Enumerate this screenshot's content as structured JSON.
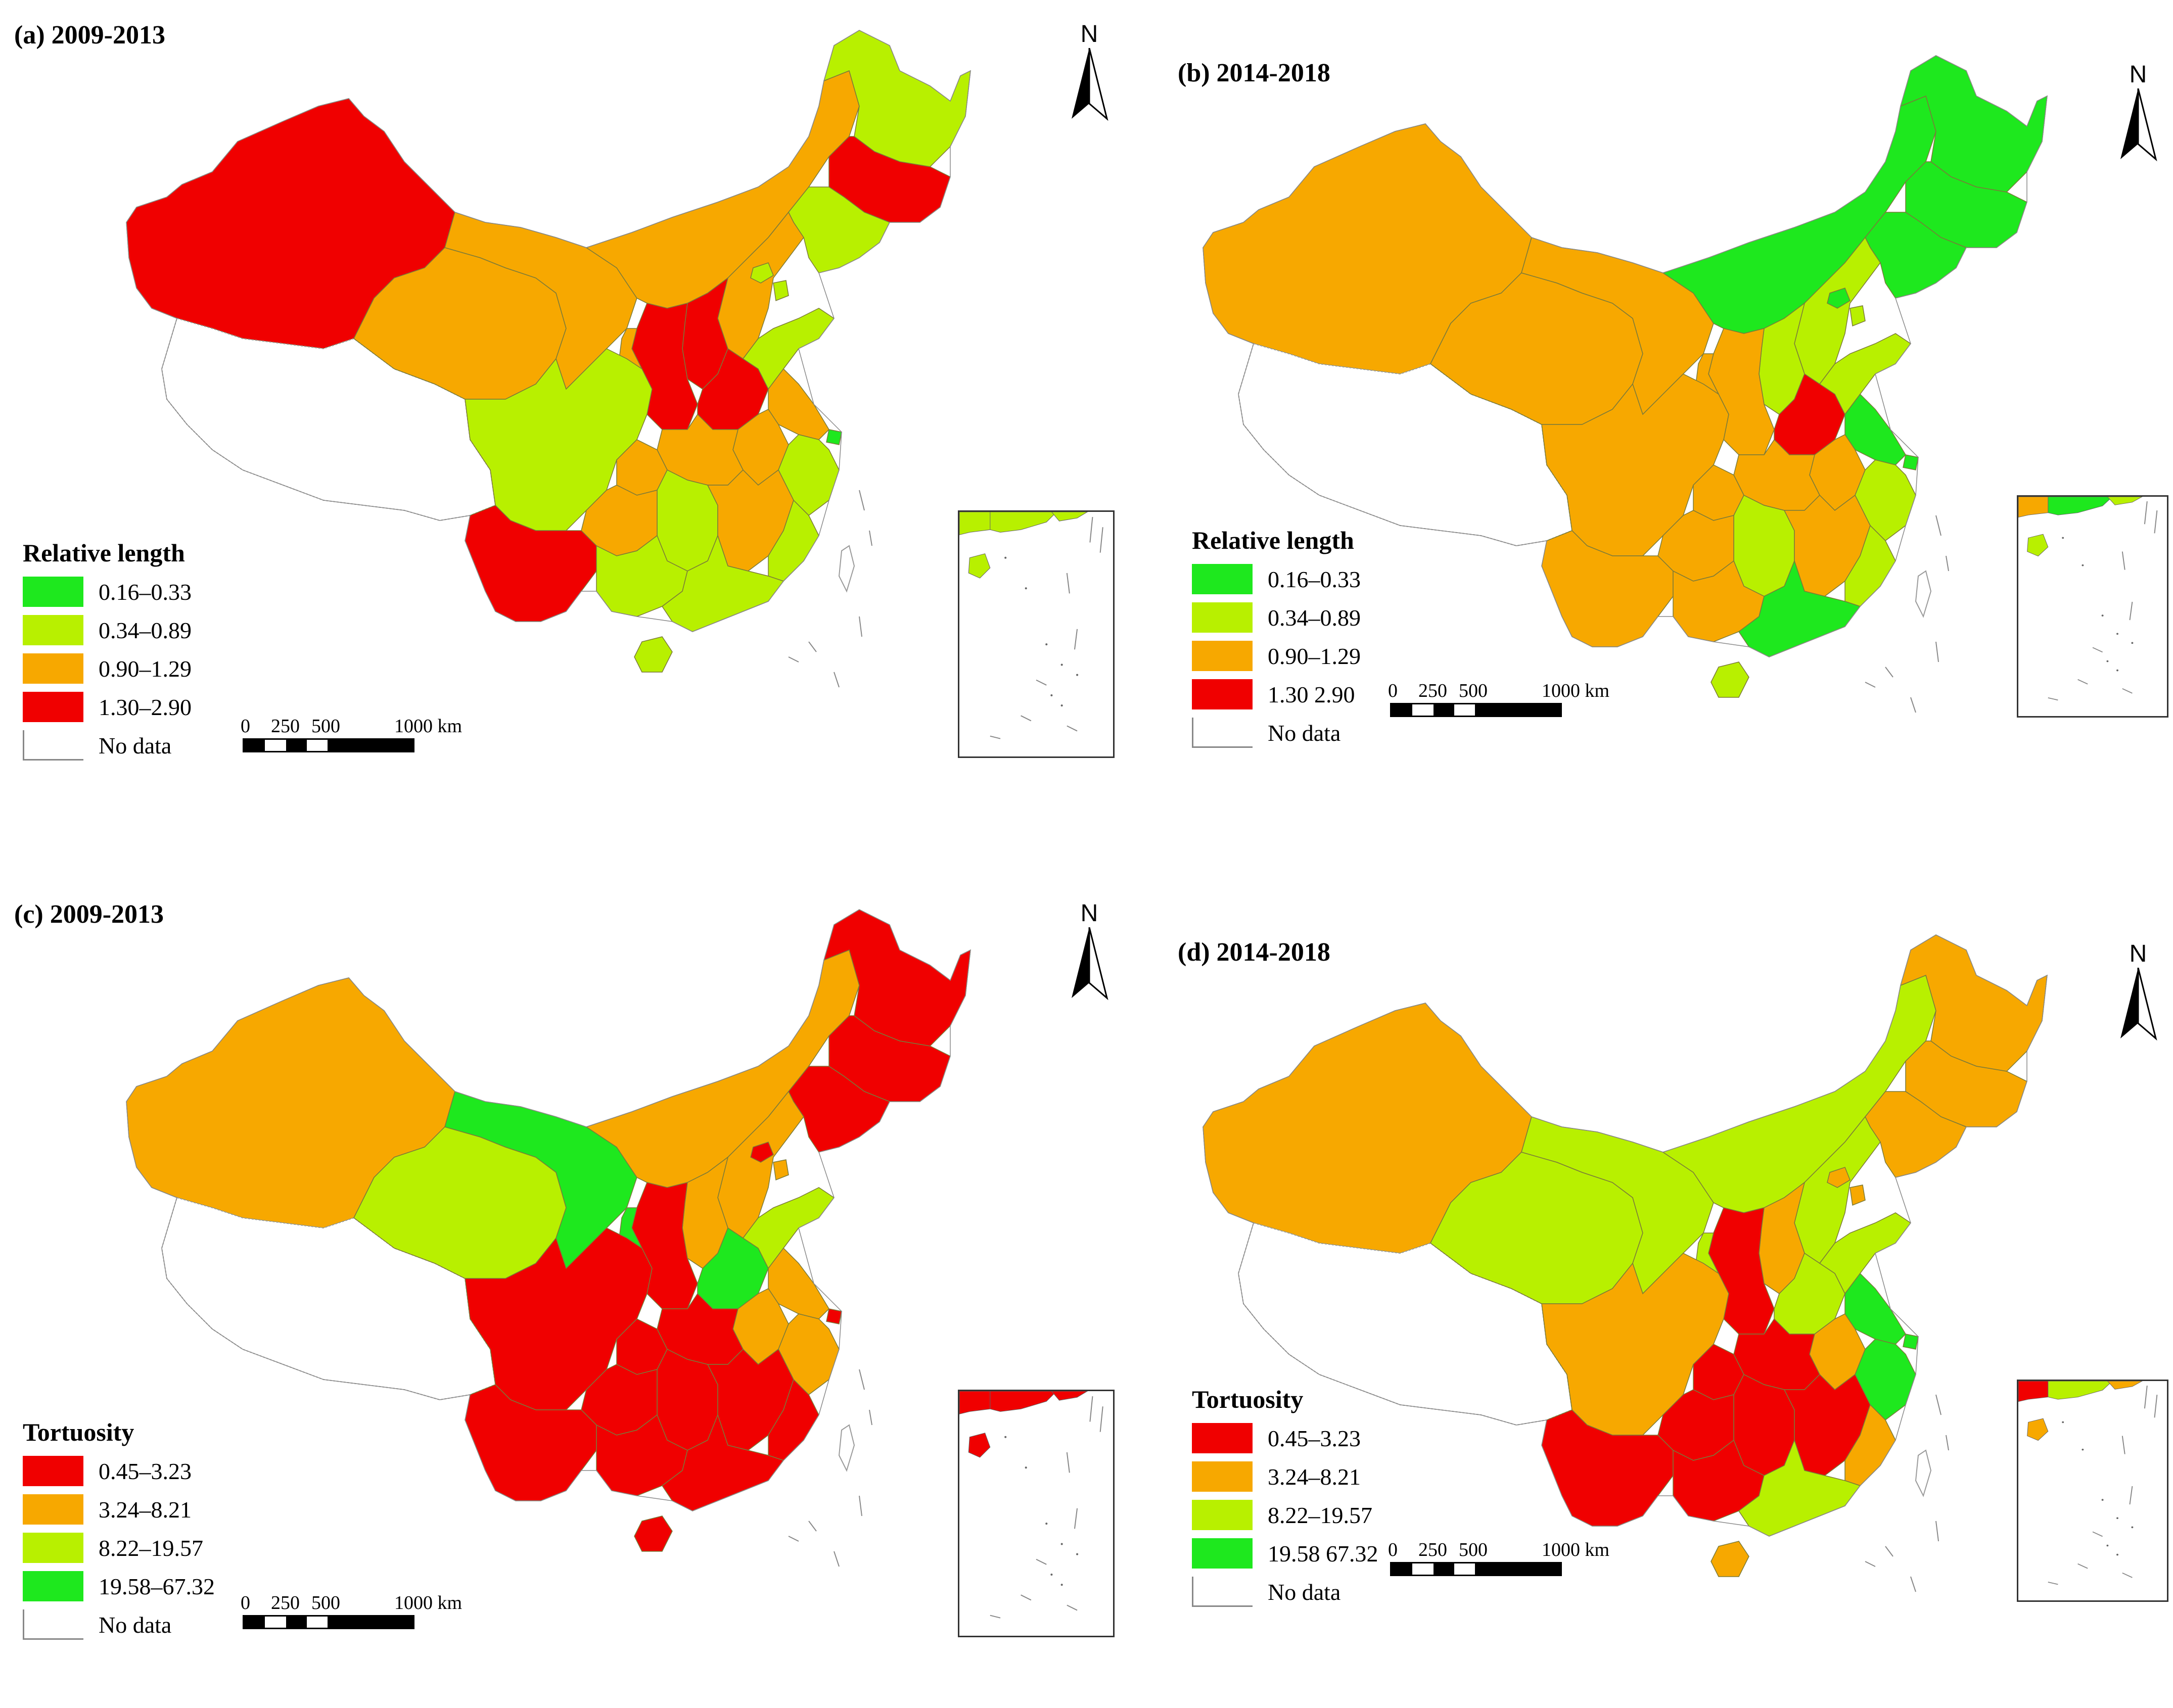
{
  "panels": [
    {
      "id": "a",
      "title": "(a) 2009-2013",
      "legend_title": "Relative length",
      "classes": [
        {
          "label": "0.16–0.33",
          "color": "#1ee81e"
        },
        {
          "label": "0.34–0.89",
          "color": "#b8f000"
        },
        {
          "label": "0.90–1.29",
          "color": "#f7a800"
        },
        {
          "label": "1.30–2.90",
          "color": "#f00000"
        }
      ],
      "nodata_label": "No data",
      "north_label": "N",
      "scale_labels": [
        "0",
        "250",
        "500",
        "1000 km"
      ],
      "regions": {
        "xinjiang": 3,
        "tibet": -1,
        "qinghai": 2,
        "gansu_w": 2,
        "inner_mongolia": 2,
        "heilongjiang": 1,
        "jilin": 3,
        "liaoning": 1,
        "hebei": 2,
        "shanxi": 3,
        "shaanxi": 3,
        "henan": 3,
        "shandong": 1,
        "jiangsu": 2,
        "shanghai": 0,
        "zhejiang": 1,
        "anhui": 2,
        "hubei": 2,
        "sichuan": 1,
        "chongqing": 2,
        "yunnan": 3,
        "guizhou": 2,
        "hunan": 1,
        "jiangxi": 2,
        "fujian": 1,
        "guangxi": 1,
        "guangdong": 1,
        "hainan": 1,
        "ningxia": 2,
        "beijing": 1,
        "tianjin": 1,
        "taiwan": -1,
        "south_sea": 1
      }
    },
    {
      "id": "b",
      "title": "(b) 2014-2018",
      "legend_title": "Relative length",
      "classes": [
        {
          "label": "0.16–0.33",
          "color": "#1ee81e"
        },
        {
          "label": "0.34–0.89",
          "color": "#b8f000"
        },
        {
          "label": "0.90–1.29",
          "color": "#f7a800"
        },
        {
          "label": "1.30 2.90",
          "color": "#f00000"
        }
      ],
      "nodata_label": "No data",
      "north_label": "N",
      "scale_labels": [
        "0",
        "250",
        "500",
        "1000 km"
      ],
      "regions": {
        "xinjiang": 2,
        "tibet": -1,
        "qinghai": 2,
        "gansu_w": 2,
        "inner_mongolia": 0,
        "heilongjiang": 0,
        "jilin": 0,
        "liaoning": 0,
        "hebei": 1,
        "shanxi": 1,
        "shaanxi": 2,
        "henan": 3,
        "shandong": 1,
        "jiangsu": 0,
        "shanghai": 0,
        "zhejiang": 1,
        "anhui": 2,
        "hubei": 2,
        "sichuan": 2,
        "chongqing": 2,
        "yunnan": 2,
        "guizhou": 2,
        "hunan": 1,
        "jiangxi": 2,
        "fujian": 1,
        "guangxi": 2,
        "guangdong": 0,
        "hainan": 1,
        "ningxia": 2,
        "beijing": 0,
        "tianjin": 1,
        "taiwan": -1,
        "south_sea": 2
      }
    },
    {
      "id": "c",
      "title": "(c) 2009-2013",
      "legend_title": "Tortuosity",
      "classes": [
        {
          "label": "0.45–3.23",
          "color": "#f00000"
        },
        {
          "label": "3.24–8.21",
          "color": "#f7a800"
        },
        {
          "label": "8.22–19.57",
          "color": "#b8f000"
        },
        {
          "label": "19.58–67.32",
          "color": "#1ee81e"
        }
      ],
      "nodata_label": "No data",
      "north_label": "N",
      "scale_labels": [
        "0",
        "250",
        "500",
        "1000 km"
      ],
      "regions": {
        "xinjiang": 1,
        "tibet": -1,
        "qinghai": 2,
        "gansu_w": 3,
        "inner_mongolia": 1,
        "heilongjiang": 0,
        "jilin": 0,
        "liaoning": 0,
        "hebei": 1,
        "shanxi": 1,
        "shaanxi": 0,
        "henan": 3,
        "shandong": 2,
        "jiangsu": 1,
        "shanghai": 0,
        "zhejiang": 1,
        "anhui": 1,
        "hubei": 0,
        "sichuan": 0,
        "chongqing": 0,
        "yunnan": 0,
        "guizhou": 0,
        "hunan": 0,
        "jiangxi": 0,
        "fujian": 0,
        "guangxi": 0,
        "guangdong": 0,
        "hainan": 0,
        "ningxia": 3,
        "beijing": 0,
        "tianjin": 1,
        "taiwan": -1,
        "south_sea": 0
      }
    },
    {
      "id": "d",
      "title": "(d) 2014-2018",
      "legend_title": "Tortuosity",
      "classes": [
        {
          "label": "0.45–3.23",
          "color": "#f00000"
        },
        {
          "label": "3.24–8.21",
          "color": "#f7a800"
        },
        {
          "label": "8.22–19.57",
          "color": "#b8f000"
        },
        {
          "label": "19.58 67.32",
          "color": "#1ee81e"
        }
      ],
      "nodata_label": "No data",
      "north_label": "N",
      "scale_labels": [
        "0",
        "250",
        "500",
        "1000 km"
      ],
      "regions": {
        "xinjiang": 1,
        "tibet": -1,
        "qinghai": 2,
        "gansu_w": 2,
        "inner_mongolia": 2,
        "heilongjiang": 1,
        "jilin": 1,
        "liaoning": 1,
        "hebei": 2,
        "shanxi": 1,
        "shaanxi": 0,
        "henan": 2,
        "shandong": 2,
        "jiangsu": 3,
        "shanghai": 3,
        "zhejiang": 3,
        "anhui": 1,
        "hubei": 0,
        "sichuan": 1,
        "chongqing": 0,
        "yunnan": 0,
        "guizhou": 0,
        "hunan": 0,
        "jiangxi": 0,
        "fujian": 1,
        "guangxi": 0,
        "guangdong": 2,
        "hainan": 1,
        "ningxia": 2,
        "beijing": 1,
        "tianjin": 1,
        "taiwan": -1,
        "south_sea": 0
      }
    }
  ]
}
